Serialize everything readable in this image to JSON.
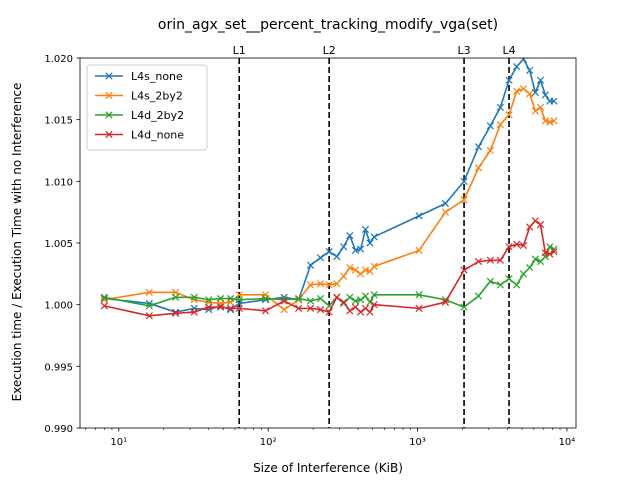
{
  "chart_data": {
    "type": "line",
    "title": "orin_agx_set__percent_tracking_modify_vga(set)",
    "xlabel": "Size of Interference (KiB)",
    "ylabel": "Execution time / Execution Time with no Interference",
    "xscale": "log",
    "xlim": [
      5.5,
      11500
    ],
    "ylim": [
      0.99,
      1.02
    ],
    "xticks": [
      {
        "value": 10,
        "label": "10¹"
      },
      {
        "value": 100,
        "label": "10²"
      },
      {
        "value": 1000,
        "label": "10³"
      },
      {
        "value": 10000,
        "label": "10⁴"
      }
    ],
    "yticks": [
      0.99,
      0.995,
      1.0,
      1.005,
      1.01,
      1.015,
      1.02
    ],
    "ytick_labels": [
      "0.990",
      "0.995",
      "1.000",
      "1.005",
      "1.010",
      "1.015",
      "1.020"
    ],
    "grid": false,
    "legend_position": "top-left",
    "marker": "x",
    "vlines": [
      {
        "label": "L1",
        "x": 64
      },
      {
        "label": "L2",
        "x": 256
      },
      {
        "label": "L3",
        "x": 2048
      },
      {
        "label": "L4",
        "x": 4096
      }
    ],
    "series": [
      {
        "name": "L4s_none",
        "color": "#1f77b4",
        "x": [
          8,
          16,
          24,
          32,
          40,
          48,
          56,
          64,
          96,
          128,
          160,
          192,
          224,
          256,
          288,
          320,
          352,
          384,
          416,
          448,
          480,
          512,
          1024,
          1536,
          2048,
          2560,
          3072,
          3584,
          4096,
          4608,
          5120,
          5632,
          6144,
          6656,
          7168,
          7680,
          8192
        ],
        "y": [
          1.0005,
          1.0001,
          0.9994,
          0.9997,
          0.9996,
          0.9999,
          0.9996,
          1.0001,
          1.0004,
          1.0006,
          1.0004,
          1.0032,
          1.0038,
          1.0043,
          1.0039,
          1.0047,
          1.0056,
          1.0044,
          1.0045,
          1.0061,
          1.005,
          1.0055,
          1.0072,
          1.0082,
          1.01,
          1.0128,
          1.0145,
          1.016,
          1.0182,
          1.0193,
          1.0199,
          1.019,
          1.0172,
          1.0182,
          1.017,
          1.0165,
          1.0165
        ]
      },
      {
        "name": "L4s_2by2",
        "color": "#ff7f0e",
        "x": [
          8,
          16,
          24,
          32,
          40,
          48,
          56,
          64,
          96,
          128,
          160,
          192,
          224,
          256,
          288,
          320,
          352,
          384,
          416,
          448,
          480,
          512,
          1024,
          1536,
          2048,
          2560,
          3072,
          3584,
          4096,
          4608,
          5120,
          5632,
          6144,
          6656,
          7168,
          7680,
          8192
        ],
        "y": [
          1.0004,
          1.001,
          1.001,
          1.0004,
          1.0002,
          1.0001,
          1.0002,
          1.0008,
          1.0008,
          0.9996,
          1.0004,
          1.0016,
          1.0017,
          1.0016,
          1.0017,
          1.0023,
          1.003,
          1.0028,
          1.0025,
          1.0028,
          1.0027,
          1.0031,
          1.0044,
          1.0075,
          1.0085,
          1.0111,
          1.0125,
          1.0146,
          1.0154,
          1.0173,
          1.0175,
          1.0171,
          1.0157,
          1.016,
          1.0149,
          1.0148,
          1.0149
        ]
      },
      {
        "name": "L4d_2by2",
        "color": "#2ca02c",
        "x": [
          8,
          16,
          24,
          32,
          40,
          48,
          56,
          64,
          96,
          128,
          160,
          192,
          224,
          256,
          288,
          320,
          352,
          384,
          416,
          448,
          480,
          512,
          1024,
          1536,
          2048,
          2560,
          3072,
          3584,
          4096,
          4608,
          5120,
          5632,
          6144,
          6656,
          7168,
          7680,
          8192
        ],
        "y": [
          1.0006,
          0.9999,
          1.0006,
          1.0006,
          1.0004,
          1.0005,
          1.0005,
          1.0004,
          1.0005,
          1.0004,
          1.0005,
          1.0003,
          1.0005,
          0.9999,
          1.0006,
          1.0001,
          1.0006,
          1.0003,
          1.0004,
          1.0007,
          1.0002,
          1.0008,
          1.0008,
          1.0004,
          0.9998,
          1.0007,
          1.0019,
          1.0016,
          1.0021,
          1.0016,
          1.0025,
          1.003,
          1.0037,
          1.0035,
          1.0039,
          1.0047,
          1.0045
        ]
      },
      {
        "name": "L4d_none",
        "color": "#d62728",
        "x": [
          8,
          16,
          24,
          32,
          40,
          48,
          56,
          64,
          96,
          128,
          160,
          192,
          224,
          256,
          288,
          320,
          352,
          384,
          416,
          448,
          480,
          512,
          1024,
          1536,
          2048,
          2560,
          3072,
          3584,
          4096,
          4608,
          5120,
          5632,
          6144,
          6656,
          7168,
          7680,
          8192
        ],
        "y": [
          0.9999,
          0.9991,
          0.9993,
          0.9994,
          0.9998,
          0.9998,
          0.9997,
          0.9997,
          0.9995,
          1.0003,
          0.9997,
          0.9997,
          0.9996,
          0.9994,
          1.0006,
          1.0002,
          0.9995,
          0.9998,
          0.9994,
          0.9997,
          0.9994,
          1.0,
          0.9997,
          1.0002,
          1.0028,
          1.0035,
          1.0036,
          1.0036,
          1.0047,
          1.0049,
          1.0048,
          1.0063,
          1.0068,
          1.0065,
          1.0042,
          1.0041,
          1.0043
        ]
      }
    ]
  }
}
